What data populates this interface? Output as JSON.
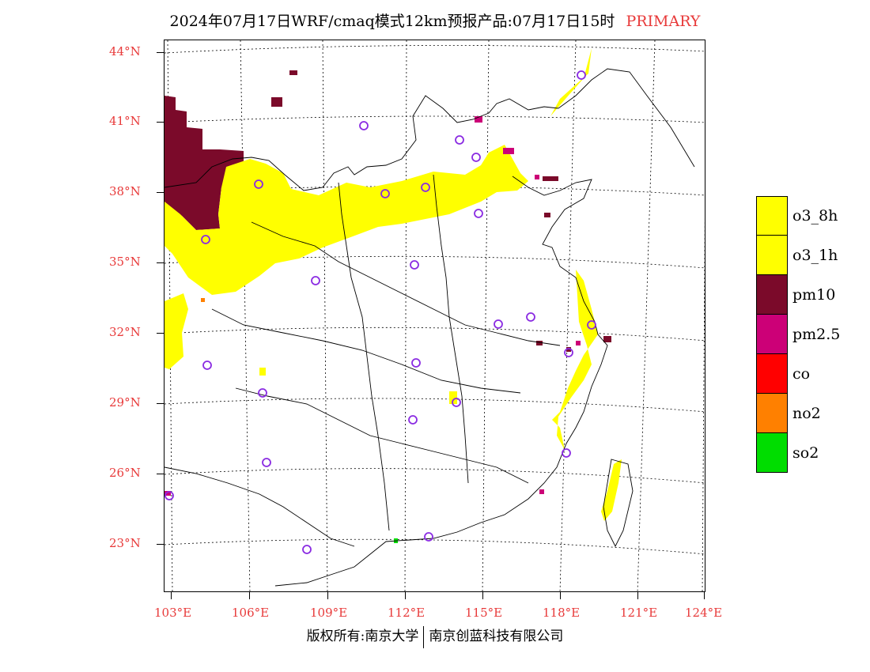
{
  "title": {
    "main": "2024年07月17日WRF/cmaq模式12km预报产品:07月17日15时",
    "tag": "PRIMARY"
  },
  "map": {
    "lat_labels": [
      "44°N",
      "41°N",
      "38°N",
      "35°N",
      "32°N",
      "29°N",
      "26°N",
      "23°N"
    ],
    "lon_labels": [
      "103°E",
      "106°E",
      "109°E",
      "112°E",
      "115°E",
      "118°E",
      "121°E",
      "124°E"
    ],
    "extent": {
      "lon_min": 102.8,
      "lon_max": 124.0,
      "lat_min": 21.0,
      "lat_max": 44.5
    },
    "colors": {
      "o3_8h": "#ffff00",
      "o3_1h": "#ffff00",
      "pm10": "#7b0a2a",
      "pm25": "#cc0077",
      "co": "#ff0000",
      "no2": "#ff8000",
      "so2": "#00dd00",
      "station": "#8a2be2",
      "label": "#e83a3a"
    }
  },
  "legend": {
    "items": [
      {
        "label": "o3_8h",
        "color": "#ffff00"
      },
      {
        "label": "o3_1h",
        "color": "#ffff00"
      },
      {
        "label": "pm10",
        "color": "#7b0a2a"
      },
      {
        "label": "pm2.5",
        "color": "#cc0077"
      },
      {
        "label": "co",
        "color": "#ff0000"
      },
      {
        "label": "no2",
        "color": "#ff8000"
      },
      {
        "label": "so2",
        "color": "#00dd00"
      }
    ]
  },
  "footer": {
    "left": "版权所有:南京大学",
    "right": "南京创蓝科技有限公司"
  }
}
